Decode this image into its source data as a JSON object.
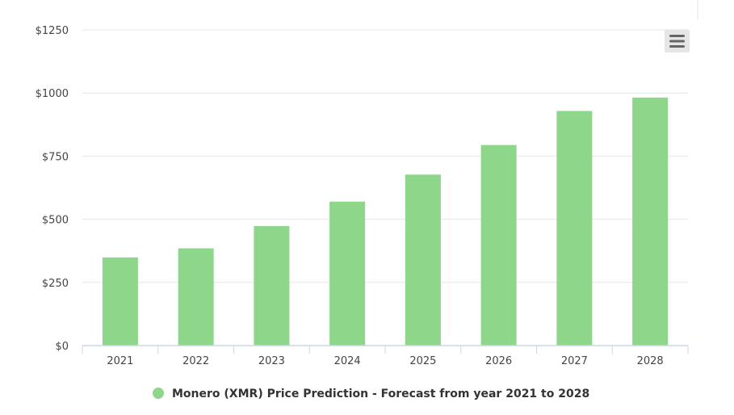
{
  "chart_data": {
    "type": "bar",
    "categories": [
      "2021",
      "2022",
      "2023",
      "2024",
      "2025",
      "2026",
      "2027",
      "2028"
    ],
    "series": [
      {
        "name": "Monero (XMR) Price Prediction - Forecast from year 2021 to 2028",
        "values": [
          349,
          385,
          473,
          570,
          677,
          794,
          929,
          982
        ]
      }
    ],
    "y_ticks": [
      "$0",
      "$250",
      "$500",
      "$750",
      "$1000",
      "$1250"
    ],
    "ylim": [
      0,
      1250
    ],
    "grid": true,
    "legend_position": "bottom-center",
    "bar_color": "#8dd68a",
    "grid_color": "#e6e6e6",
    "axis_color": "#ccd6eb"
  },
  "menu": {
    "icon": "hamburger-menu-icon"
  }
}
